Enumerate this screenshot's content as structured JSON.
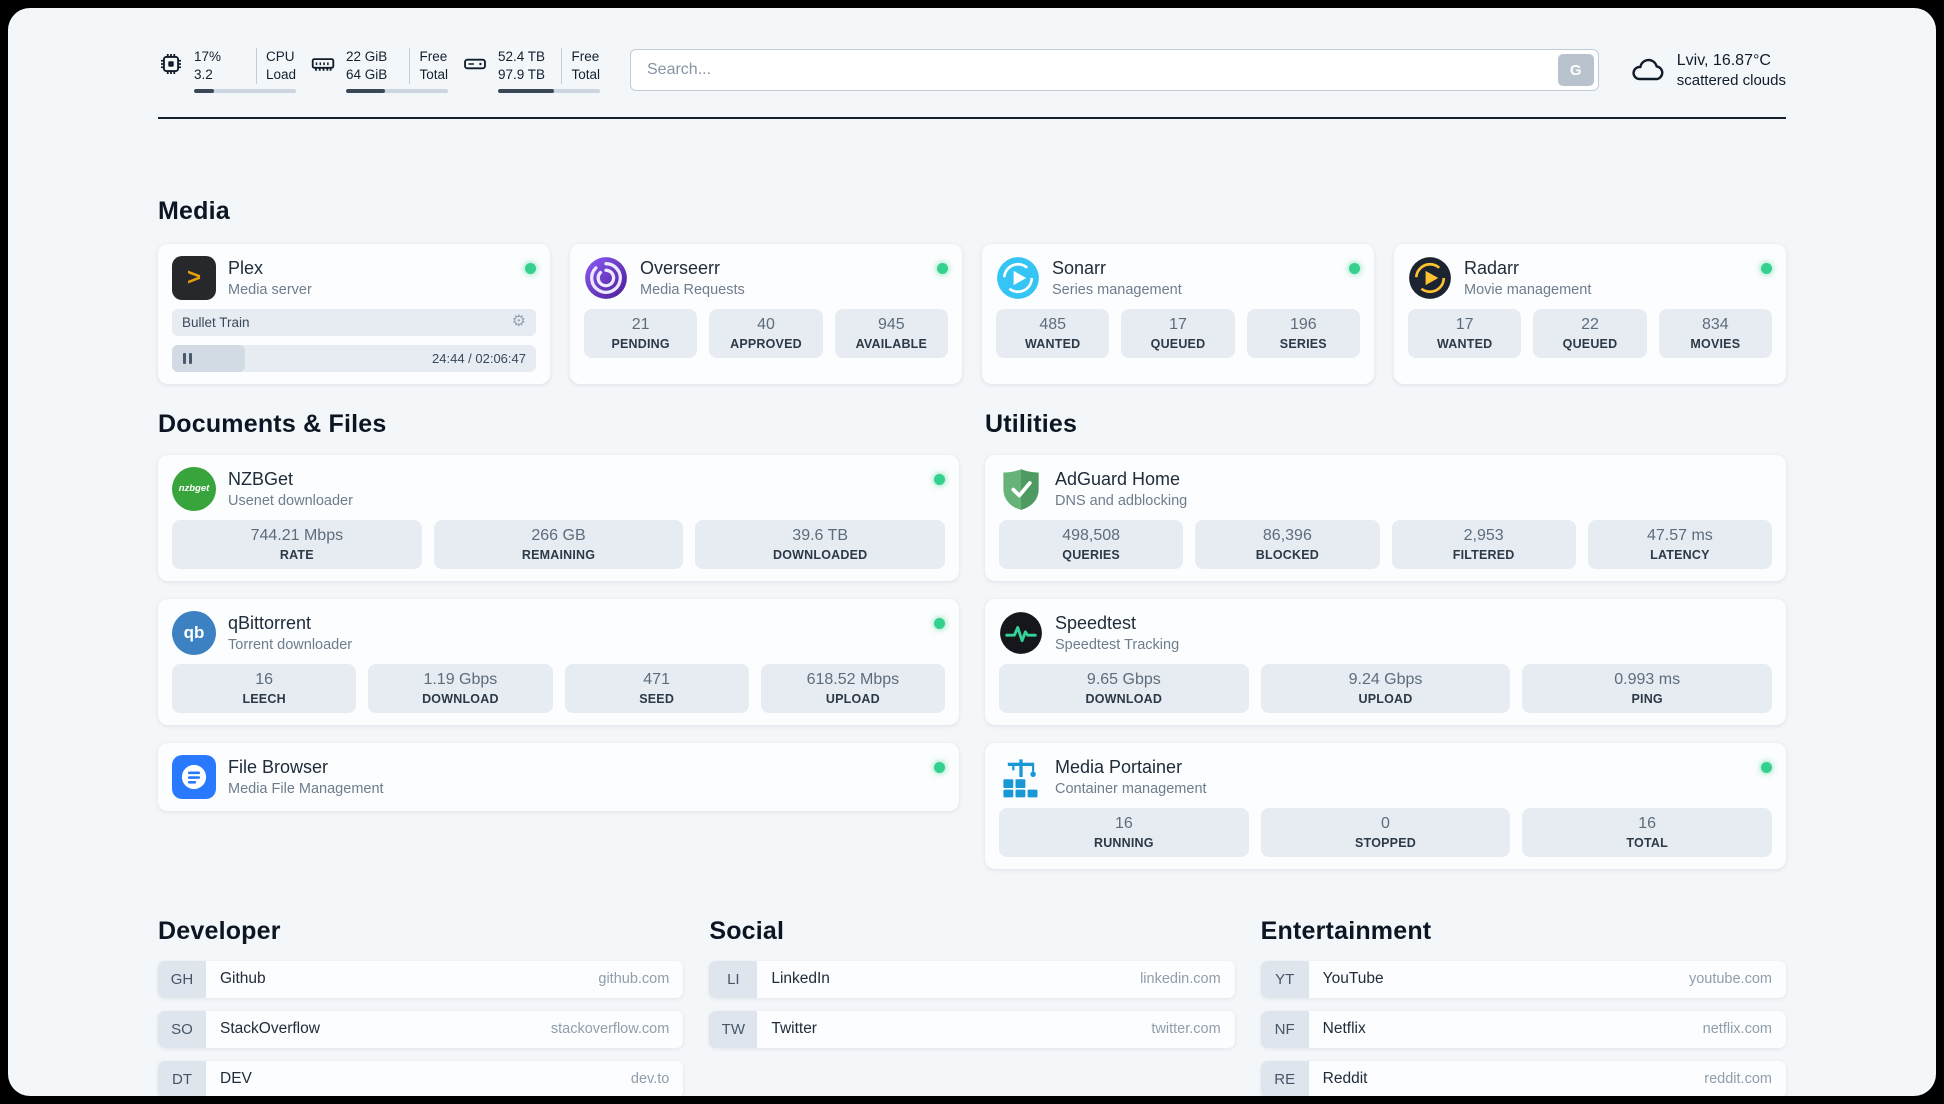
{
  "colors": {
    "page_background": "#f4f7fa",
    "status_online": "#35d08e",
    "divider": "#16202c",
    "stat_block": "#e7ecf2"
  },
  "topbar": {
    "cpu": {
      "value1": "17%",
      "value2": "3.2",
      "label1": "CPU",
      "label2": "Load",
      "fill": 20
    },
    "ram": {
      "value1": "22 GiB",
      "value2": "64 GiB",
      "label1": "Free",
      "label2": "Total",
      "fill": 38
    },
    "disk": {
      "value1": "52.4 TB",
      "value2": "97.9 TB",
      "label1": "Free",
      "label2": "Total",
      "fill": 55
    },
    "search": {
      "placeholder": "Search...",
      "button_label": "G"
    },
    "weather": {
      "location": "Lviv, 16.87°C",
      "condition": "scattered clouds"
    }
  },
  "media": {
    "title": "Media",
    "cards": [
      {
        "icon": "plex-icon",
        "name": "Plex",
        "subtitle": "Media server",
        "status": true,
        "player": {
          "title": "Bullet Train",
          "time": "24:44 / 02:06:47",
          "progress": 20
        }
      },
      {
        "icon": "overseerr-icon",
        "name": "Overseerr",
        "subtitle": "Media Requests",
        "status": true,
        "stats": [
          {
            "value": "21",
            "label": "PENDING"
          },
          {
            "value": "40",
            "label": "APPROVED"
          },
          {
            "value": "945",
            "label": "AVAILABLE"
          }
        ]
      },
      {
        "icon": "sonarr-icon",
        "name": "Sonarr",
        "subtitle": "Series management",
        "status": true,
        "stats": [
          {
            "value": "485",
            "label": "WANTED"
          },
          {
            "value": "17",
            "label": "QUEUED"
          },
          {
            "value": "196",
            "label": "SERIES"
          }
        ]
      },
      {
        "icon": "radarr-icon",
        "name": "Radarr",
        "subtitle": "Movie management",
        "status": true,
        "stats": [
          {
            "value": "17",
            "label": "WANTED"
          },
          {
            "value": "22",
            "label": "QUEUED"
          },
          {
            "value": "834",
            "label": "MOVIES"
          }
        ]
      }
    ]
  },
  "documents": {
    "title": "Documents & Files",
    "cards": [
      {
        "icon": "nzbget-icon",
        "name": "NZBGet",
        "subtitle": "Usenet downloader",
        "status": true,
        "stats": [
          {
            "value": "744.21 Mbps",
            "label": "RATE"
          },
          {
            "value": "266 GB",
            "label": "REMAINING"
          },
          {
            "value": "39.6 TB",
            "label": "DOWNLOADED"
          }
        ]
      },
      {
        "icon": "qbittorrent-icon",
        "name": "qBittorrent",
        "subtitle": "Torrent downloader",
        "status": true,
        "stats": [
          {
            "value": "16",
            "label": "LEECH"
          },
          {
            "value": "1.19 Gbps",
            "label": "DOWNLOAD"
          },
          {
            "value": "471",
            "label": "SEED"
          },
          {
            "value": "618.52 Mbps",
            "label": "UPLOAD"
          }
        ]
      },
      {
        "icon": "filebrowser-icon",
        "name": "File Browser",
        "subtitle": "Media File Management",
        "status": true
      }
    ]
  },
  "utilities": {
    "title": "Utilities",
    "cards": [
      {
        "icon": "adguard-icon",
        "name": "AdGuard Home",
        "subtitle": "DNS and adblocking",
        "status": false,
        "stats": [
          {
            "value": "498,508",
            "label": "QUERIES"
          },
          {
            "value": "86,396",
            "label": "BLOCKED"
          },
          {
            "value": "2,953",
            "label": "FILTERED"
          },
          {
            "value": "47.57 ms",
            "label": "LATENCY"
          }
        ]
      },
      {
        "icon": "speedtest-icon",
        "name": "Speedtest",
        "subtitle": "Speedtest Tracking",
        "status": false,
        "stats": [
          {
            "value": "9.65 Gbps",
            "label": "DOWNLOAD"
          },
          {
            "value": "9.24 Gbps",
            "label": "UPLOAD"
          },
          {
            "value": "0.993 ms",
            "label": "PING"
          }
        ]
      },
      {
        "icon": "portainer-icon",
        "name": "Media Portainer",
        "subtitle": "Container management",
        "status": true,
        "stats": [
          {
            "value": "16",
            "label": "RUNNING"
          },
          {
            "value": "0",
            "label": "STOPPED"
          },
          {
            "value": "16",
            "label": "TOTAL"
          }
        ]
      }
    ]
  },
  "bookmarks": [
    {
      "title": "Developer",
      "links": [
        {
          "abbr": "GH",
          "name": "Github",
          "url": "github.com"
        },
        {
          "abbr": "SO",
          "name": "StackOverflow",
          "url": "stackoverflow.com"
        },
        {
          "abbr": "DT",
          "name": "DEV",
          "url": "dev.to"
        }
      ]
    },
    {
      "title": "Social",
      "links": [
        {
          "abbr": "LI",
          "name": "LinkedIn",
          "url": "linkedin.com"
        },
        {
          "abbr": "TW",
          "name": "Twitter",
          "url": "twitter.com"
        }
      ]
    },
    {
      "title": "Entertainment",
      "links": [
        {
          "abbr": "YT",
          "name": "YouTube",
          "url": "youtube.com"
        },
        {
          "abbr": "NF",
          "name": "Netflix",
          "url": "netflix.com"
        },
        {
          "abbr": "RE",
          "name": "Reddit",
          "url": "reddit.com"
        }
      ]
    }
  ]
}
